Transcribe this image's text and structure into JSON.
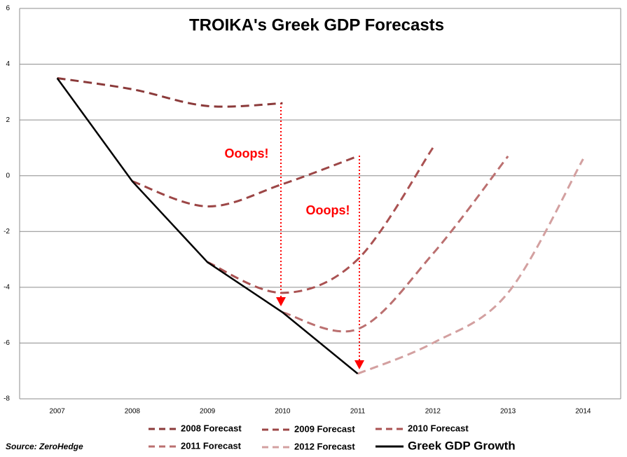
{
  "chart_data": {
    "type": "line",
    "title": "TROIKA's Greek GDP Forecasts",
    "categories": [
      "2007",
      "2008",
      "2009",
      "2010",
      "2011",
      "2012",
      "2013",
      "2014"
    ],
    "series": [
      {
        "name": "2008 Forecast",
        "color": "#8b3a3a",
        "dashed": true,
        "values": [
          3.5,
          3.1,
          2.5,
          2.6,
          null,
          null,
          null,
          null
        ]
      },
      {
        "name": "2009 Forecast",
        "color": "#9c4646",
        "dashed": true,
        "values": [
          null,
          -0.2,
          -1.1,
          -0.3,
          0.7,
          null,
          null,
          null
        ]
      },
      {
        "name": "2010 Forecast",
        "color": "#aa5252",
        "dashed": true,
        "values": [
          null,
          null,
          -3.1,
          -4.2,
          -3.0,
          1.0,
          null,
          null
        ]
      },
      {
        "name": "2011 Forecast",
        "color": "#bb7070",
        "dashed": true,
        "values": [
          null,
          null,
          null,
          -4.9,
          -5.5,
          -2.8,
          0.7,
          null
        ]
      },
      {
        "name": "2012 Forecast",
        "color": "#d3a0a0",
        "dashed": true,
        "values": [
          null,
          null,
          null,
          null,
          -7.1,
          -6.0,
          -4.2,
          0.6
        ]
      },
      {
        "name": "Greek GDP Growth",
        "color": "#000000",
        "dashed": false,
        "values": [
          3.5,
          -0.2,
          -3.1,
          -4.9,
          -7.1,
          null,
          null,
          null
        ]
      }
    ],
    "ylim": [
      -8,
      6
    ],
    "yticks": [
      -8,
      -6,
      -4,
      -2,
      0,
      2,
      4,
      6
    ],
    "grid": true,
    "annotations": [
      "Ooops!",
      "Ooops!"
    ],
    "source": "Source: ZeroHedge"
  }
}
